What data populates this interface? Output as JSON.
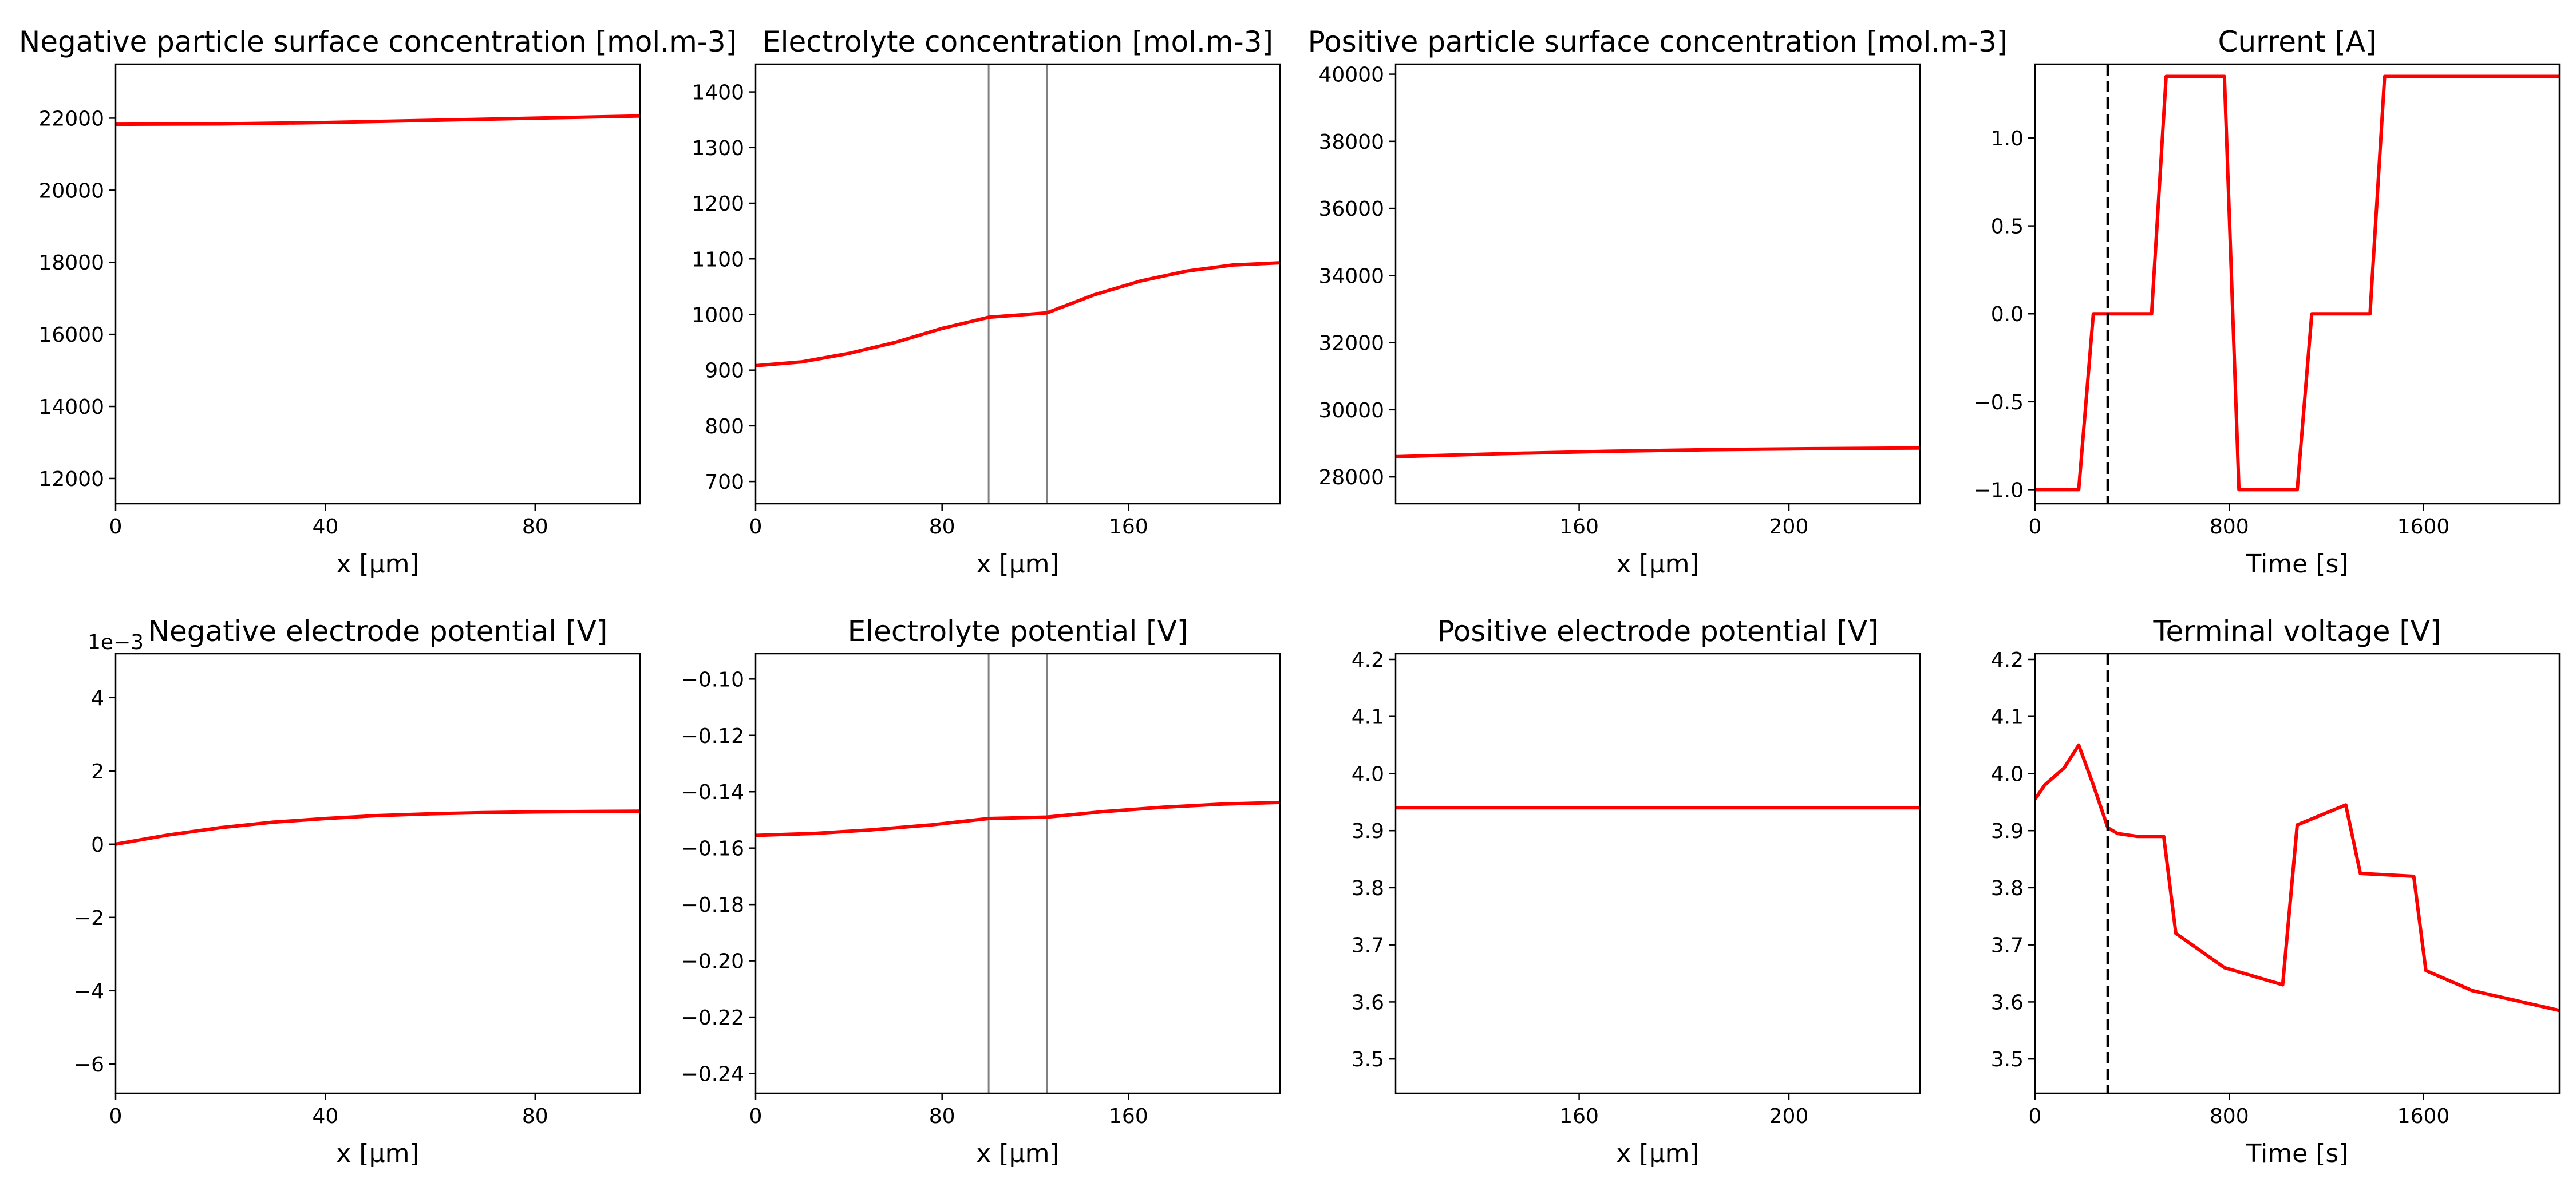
{
  "colors": {
    "series": "#ff0000",
    "separator": "#808080",
    "marker": "#000000",
    "axes": "#000000",
    "background": "#ffffff"
  },
  "chart_data": [
    {
      "type": "line",
      "title": "Negative particle surface concentration [mol.m-3]",
      "xlabel": "x [μm]",
      "ylabel": "",
      "xlim": [
        0,
        100
      ],
      "ylim": [
        11300,
        23500
      ],
      "xticks": [
        0,
        40,
        80
      ],
      "xtick_labels": [
        "0",
        "40",
        "80"
      ],
      "yticks": [
        12000,
        14000,
        16000,
        18000,
        20000,
        22000
      ],
      "ytick_labels": [
        "12000",
        "14000",
        "16000",
        "18000",
        "20000",
        "22000"
      ],
      "series": [
        {
          "x": [
            0,
            20,
            40,
            60,
            80,
            100
          ],
          "y": [
            21830,
            21840,
            21880,
            21940,
            22000,
            22060
          ]
        }
      ]
    },
    {
      "type": "line",
      "title": "Electrolyte concentration [mol.m-3]",
      "xlabel": "x [μm]",
      "ylabel": "",
      "xlim": [
        0,
        225
      ],
      "ylim": [
        660,
        1450
      ],
      "xticks": [
        0,
        80,
        160
      ],
      "xtick_labels": [
        "0",
        "80",
        "160"
      ],
      "yticks": [
        700,
        800,
        900,
        1000,
        1100,
        1200,
        1300,
        1400
      ],
      "ytick_labels": [
        "700",
        "800",
        "900",
        "1000",
        "1100",
        "1200",
        "1300",
        "1400"
      ],
      "vlines": [
        100,
        125
      ],
      "series": [
        {
          "x": [
            0,
            20,
            40,
            60,
            80,
            100,
            125,
            145,
            165,
            185,
            205,
            225
          ],
          "y": [
            908,
            915,
            930,
            950,
            975,
            995,
            1003,
            1035,
            1060,
            1078,
            1089,
            1093
          ]
        }
      ]
    },
    {
      "type": "line",
      "title": "Positive particle surface concentration [mol.m-3]",
      "xlabel": "x [μm]",
      "ylabel": "",
      "xlim": [
        125,
        225
      ],
      "ylim": [
        27200,
        40300
      ],
      "xticks": [
        160,
        200
      ],
      "xtick_labels": [
        "160",
        "200"
      ],
      "yticks": [
        28000,
        30000,
        32000,
        34000,
        36000,
        38000,
        40000
      ],
      "ytick_labels": [
        "28000",
        "30000",
        "32000",
        "34000",
        "36000",
        "38000",
        "40000"
      ],
      "series": [
        {
          "x": [
            125,
            145,
            165,
            185,
            205,
            225
          ],
          "y": [
            28600,
            28690,
            28760,
            28810,
            28840,
            28860
          ]
        }
      ]
    },
    {
      "type": "line",
      "title": "Current [A]",
      "xlabel": "Time [s]",
      "ylabel": "",
      "xlim": [
        0,
        2160
      ],
      "ylim": [
        -1.08,
        1.42
      ],
      "xticks": [
        0,
        800,
        1600
      ],
      "xtick_labels": [
        "0",
        "800",
        "1600"
      ],
      "yticks": [
        -1.0,
        -0.5,
        0.0,
        0.5,
        1.0
      ],
      "ytick_labels": [
        "−1.0",
        "−0.5",
        "0.0",
        "0.5",
        "1.0"
      ],
      "vmarker": 300,
      "series": [
        {
          "x": [
            0,
            180,
            240,
            480,
            540,
            780,
            840,
            1080,
            1140,
            1380,
            1440,
            1660,
            2160
          ],
          "y": [
            -1,
            -1,
            0,
            0,
            1.35,
            1.35,
            -1,
            -1,
            0,
            0,
            1.35,
            1.35,
            1.35
          ]
        }
      ]
    },
    {
      "type": "line",
      "title": "Negative electrode potential [V]",
      "xlabel": "x [μm]",
      "ylabel": "",
      "offset_text": "1e−3",
      "xlim": [
        0,
        100
      ],
      "ylim": [
        -6.8,
        5.2
      ],
      "xticks": [
        0,
        40,
        80
      ],
      "xtick_labels": [
        "0",
        "40",
        "80"
      ],
      "yticks": [
        -6,
        -4,
        -2,
        0,
        2,
        4
      ],
      "ytick_labels": [
        "−6",
        "−4",
        "−2",
        "0",
        "2",
        "4"
      ],
      "series": [
        {
          "x": [
            0,
            10,
            20,
            30,
            40,
            50,
            60,
            70,
            80,
            90,
            100
          ],
          "y": [
            0,
            0.25,
            0.45,
            0.6,
            0.7,
            0.78,
            0.83,
            0.86,
            0.88,
            0.89,
            0.9
          ]
        }
      ]
    },
    {
      "type": "line",
      "title": "Electrolyte potential [V]",
      "xlabel": "x [μm]",
      "ylabel": "",
      "xlim": [
        0,
        225
      ],
      "ylim": [
        -0.247,
        -0.091
      ],
      "xticks": [
        0,
        80,
        160
      ],
      "xtick_labels": [
        "0",
        "80",
        "160"
      ],
      "yticks": [
        -0.24,
        -0.22,
        -0.2,
        -0.18,
        -0.16,
        -0.14,
        -0.12,
        -0.1
      ],
      "ytick_labels": [
        "−0.24",
        "−0.22",
        "−0.20",
        "−0.18",
        "−0.16",
        "−0.14",
        "−0.12",
        "−0.10"
      ],
      "vlines": [
        100,
        125
      ],
      "series": [
        {
          "x": [
            0,
            25,
            50,
            75,
            100,
            125,
            150,
            175,
            200,
            225
          ],
          "y": [
            -0.1555,
            -0.1548,
            -0.1535,
            -0.1518,
            -0.1495,
            -0.149,
            -0.147,
            -0.1455,
            -0.1444,
            -0.1438
          ]
        }
      ]
    },
    {
      "type": "line",
      "title": "Positive electrode potential [V]",
      "xlabel": "x [μm]",
      "ylabel": "",
      "xlim": [
        125,
        225
      ],
      "ylim": [
        3.44,
        4.21
      ],
      "xticks": [
        160,
        200
      ],
      "xtick_labels": [
        "160",
        "200"
      ],
      "yticks": [
        3.5,
        3.6,
        3.7,
        3.8,
        3.9,
        4.0,
        4.1,
        4.2
      ],
      "ytick_labels": [
        "3.5",
        "3.6",
        "3.7",
        "3.8",
        "3.9",
        "4.0",
        "4.1",
        "4.2"
      ],
      "series": [
        {
          "x": [
            125,
            225
          ],
          "y": [
            3.94,
            3.94
          ]
        }
      ]
    },
    {
      "type": "line",
      "title": "Terminal voltage [V]",
      "xlabel": "Time [s]",
      "ylabel": "",
      "xlim": [
        0,
        2160
      ],
      "ylim": [
        3.44,
        4.21
      ],
      "xticks": [
        0,
        800,
        1600
      ],
      "xtick_labels": [
        "0",
        "800",
        "1600"
      ],
      "yticks": [
        3.5,
        3.6,
        3.7,
        3.8,
        3.9,
        4.0,
        4.1,
        4.2
      ],
      "ytick_labels": [
        "3.5",
        "3.6",
        "3.7",
        "3.8",
        "3.9",
        "4.0",
        "4.1",
        "4.2"
      ],
      "vmarker": 300,
      "series": [
        {
          "x": [
            0,
            40,
            120,
            180,
            240,
            300,
            340,
            420,
            530,
            580,
            780,
            1020,
            1080,
            1280,
            1340,
            1560,
            1610,
            1800,
            2160
          ],
          "y": [
            3.955,
            3.98,
            4.01,
            4.05,
            3.98,
            3.905,
            3.895,
            3.89,
            3.89,
            3.72,
            3.66,
            3.63,
            3.91,
            3.945,
            3.825,
            3.82,
            3.655,
            3.62,
            3.585
          ]
        }
      ]
    }
  ]
}
